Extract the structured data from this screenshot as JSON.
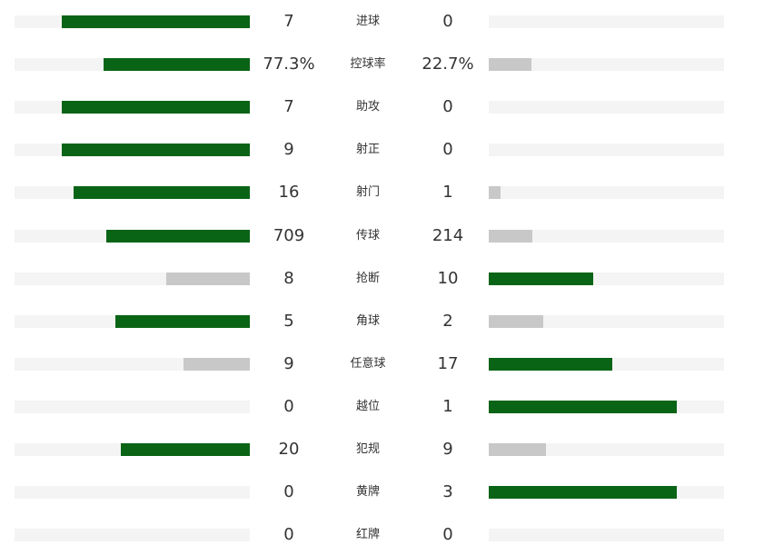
{
  "colors": {
    "leader_bar": "#0a6416",
    "trailer_bar": "#c8c8c8",
    "track": "#f4f4f4",
    "text": "#333333"
  },
  "stats": [
    {
      "label": "进球",
      "home": "7",
      "away": "0",
      "home_fill": 0.8,
      "away_fill": 0.0,
      "home_color": "leader",
      "away_color": "trailer"
    },
    {
      "label": "控球率",
      "home": "77.3%",
      "away": "22.7%",
      "home_fill": 0.62,
      "away_fill": 0.18,
      "home_color": "leader",
      "away_color": "trailer"
    },
    {
      "label": "助攻",
      "home": "7",
      "away": "0",
      "home_fill": 0.8,
      "away_fill": 0.0,
      "home_color": "leader",
      "away_color": "trailer"
    },
    {
      "label": "射正",
      "home": "9",
      "away": "0",
      "home_fill": 0.8,
      "away_fill": 0.0,
      "home_color": "leader",
      "away_color": "trailer"
    },
    {
      "label": "射门",
      "home": "16",
      "away": "1",
      "home_fill": 0.75,
      "away_fill": 0.05,
      "home_color": "leader",
      "away_color": "trailer"
    },
    {
      "label": "传球",
      "home": "709",
      "away": "214",
      "home_fill": 0.61,
      "away_fill": 0.185,
      "home_color": "leader",
      "away_color": "trailer"
    },
    {
      "label": "抢断",
      "home": "8",
      "away": "10",
      "home_fill": 0.355,
      "away_fill": 0.445,
      "home_color": "trailer",
      "away_color": "leader"
    },
    {
      "label": "角球",
      "home": "5",
      "away": "2",
      "home_fill": 0.57,
      "away_fill": 0.23,
      "home_color": "leader",
      "away_color": "trailer"
    },
    {
      "label": "任意球",
      "home": "9",
      "away": "17",
      "home_fill": 0.28,
      "away_fill": 0.525,
      "home_color": "trailer",
      "away_color": "leader"
    },
    {
      "label": "越位",
      "home": "0",
      "away": "1",
      "home_fill": 0.0,
      "away_fill": 0.8,
      "home_color": "trailer",
      "away_color": "leader"
    },
    {
      "label": "犯规",
      "home": "20",
      "away": "9",
      "home_fill": 0.55,
      "away_fill": 0.245,
      "home_color": "leader",
      "away_color": "trailer"
    },
    {
      "label": "黄牌",
      "home": "0",
      "away": "3",
      "home_fill": 0.0,
      "away_fill": 0.8,
      "home_color": "trailer",
      "away_color": "leader"
    },
    {
      "label": "红牌",
      "home": "0",
      "away": "0",
      "home_fill": 0.0,
      "away_fill": 0.0,
      "home_color": "trailer",
      "away_color": "trailer"
    }
  ]
}
